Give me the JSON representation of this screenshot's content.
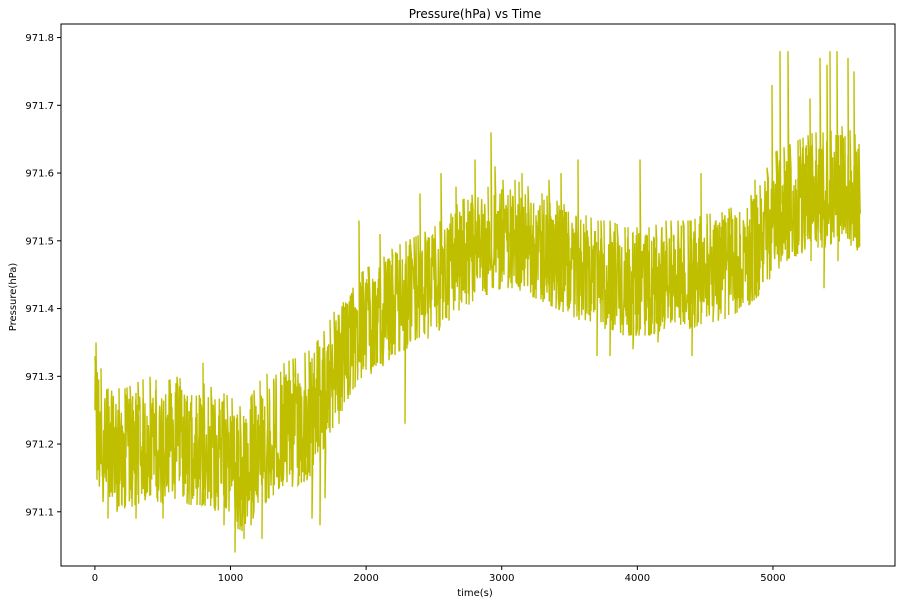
{
  "chart_data": {
    "type": "line",
    "title": "Pressure(hPa) vs Time",
    "xlabel": "time(s)",
    "ylabel": "Pressure(hPa)",
    "xlim": [
      -250,
      5900
    ],
    "ylim": [
      971.02,
      971.82
    ],
    "x_ticks": [
      0,
      1000,
      2000,
      3000,
      4000,
      5000
    ],
    "x_tick_labels": [
      "0",
      "1000",
      "2000",
      "3000",
      "4000",
      "5000"
    ],
    "y_ticks": [
      971.1,
      971.2,
      971.3,
      971.4,
      971.5,
      971.6,
      971.7,
      971.8
    ],
    "y_tick_labels": [
      "971.1",
      "971.2",
      "971.3",
      "971.4",
      "971.5",
      "971.6",
      "971.7",
      "971.8"
    ],
    "grid": false,
    "legend": "none",
    "series": [
      {
        "color": "#bfbf00",
        "x": [
          0,
          100,
          200,
          300,
          400,
          500,
          600,
          700,
          800,
          900,
          1000,
          1100,
          1200,
          1300,
          1400,
          1500,
          1600,
          1700,
          1800,
          1900,
          2000,
          2100,
          2200,
          2300,
          2400,
          2500,
          2600,
          2700,
          2800,
          2900,
          3000,
          3100,
          3200,
          3300,
          3400,
          3500,
          3600,
          3700,
          3800,
          3900,
          4000,
          4100,
          4200,
          4300,
          4400,
          4500,
          4600,
          4700,
          4800,
          4900,
          5000,
          5100,
          5200,
          5300,
          5400,
          5500,
          5600,
          5640
        ],
        "y": [
          971.25,
          971.2,
          971.19,
          971.2,
          971.21,
          971.2,
          971.21,
          971.2,
          971.2,
          971.19,
          971.18,
          971.16,
          971.2,
          971.22,
          971.23,
          971.24,
          971.25,
          971.28,
          971.33,
          971.36,
          971.38,
          971.39,
          971.41,
          971.42,
          971.43,
          971.44,
          971.46,
          971.48,
          971.49,
          971.5,
          971.51,
          971.51,
          971.5,
          971.49,
          971.48,
          971.47,
          971.46,
          971.45,
          971.45,
          971.44,
          971.44,
          971.44,
          971.45,
          971.45,
          971.45,
          971.46,
          971.46,
          971.47,
          971.48,
          971.5,
          971.52,
          971.54,
          971.55,
          971.56,
          971.56,
          971.57,
          971.56,
          971.55
        ],
        "band_low": [
          971.13,
          971.1,
          971.1,
          971.11,
          971.12,
          971.11,
          971.12,
          971.11,
          971.11,
          971.1,
          971.08,
          971.07,
          971.1,
          971.12,
          971.13,
          971.14,
          971.15,
          971.19,
          971.24,
          971.28,
          971.3,
          971.31,
          971.33,
          971.34,
          971.35,
          971.36,
          971.38,
          971.4,
          971.41,
          971.42,
          971.43,
          971.43,
          971.42,
          971.41,
          971.4,
          971.39,
          971.38,
          971.37,
          971.37,
          971.36,
          971.36,
          971.36,
          971.37,
          971.37,
          971.37,
          971.38,
          971.38,
          971.39,
          971.4,
          971.42,
          971.45,
          971.47,
          971.48,
          971.49,
          971.49,
          971.5,
          971.49,
          971.47
        ],
        "band_high": [
          971.33,
          971.29,
          971.28,
          971.29,
          971.3,
          971.29,
          971.3,
          971.29,
          971.29,
          971.28,
          971.27,
          971.25,
          971.29,
          971.31,
          971.32,
          971.33,
          971.34,
          971.37,
          971.41,
          971.44,
          971.46,
          971.47,
          971.49,
          971.5,
          971.51,
          971.52,
          971.54,
          971.56,
          971.57,
          971.58,
          971.59,
          971.59,
          971.58,
          971.57,
          971.56,
          971.55,
          971.54,
          971.53,
          971.53,
          971.52,
          971.52,
          971.52,
          971.53,
          971.53,
          971.53,
          971.54,
          971.54,
          971.55,
          971.56,
          971.58,
          971.63,
          971.64,
          971.65,
          971.66,
          971.66,
          971.67,
          971.66,
          971.64
        ],
        "extremes_x": [
          10,
          95,
          300,
          500,
          800,
          950,
          1030,
          1100,
          1150,
          1200,
          1230,
          1600,
          1660,
          1700,
          1800,
          1950,
          2100,
          2290,
          2400,
          2550,
          2660,
          2800,
          2920,
          2950,
          3150,
          3300,
          3350,
          3440,
          3560,
          3700,
          3800,
          3970,
          4000,
          4020,
          4150,
          4400,
          4470,
          4870,
          4990,
          5050,
          5110,
          5270,
          5280,
          5350,
          5380,
          5400,
          5420,
          5470,
          5480,
          5550,
          5600
        ],
        "extremes_y": [
          971.35,
          971.09,
          971.09,
          971.09,
          971.32,
          971.08,
          971.04,
          971.06,
          971.08,
          971.12,
          971.06,
          971.09,
          971.08,
          971.12,
          971.23,
          971.53,
          971.51,
          971.23,
          971.57,
          971.6,
          971.58,
          971.62,
          971.66,
          971.61,
          971.6,
          971.57,
          971.59,
          971.6,
          971.62,
          971.33,
          971.33,
          971.34,
          971.52,
          971.62,
          971.35,
          971.33,
          971.6,
          971.59,
          971.73,
          971.78,
          971.78,
          971.71,
          971.47,
          971.77,
          971.43,
          971.76,
          971.78,
          971.78,
          971.47,
          971.77,
          971.75
        ]
      }
    ]
  }
}
